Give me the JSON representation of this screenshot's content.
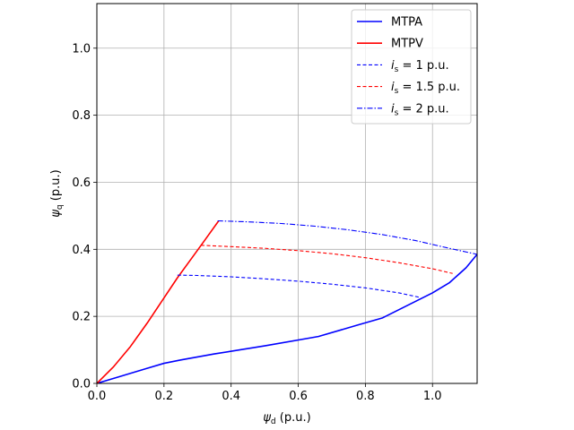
{
  "chart_data": {
    "type": "line",
    "xlabel": {
      "base": "ψ",
      "sub": "d",
      "unit": " (p.u.)"
    },
    "ylabel": {
      "base": "ψ",
      "sub": "q",
      "unit": " (p.u.)"
    },
    "xlim": [
      0,
      1.133
    ],
    "ylim": [
      0,
      1.133
    ],
    "xticks": [
      0.0,
      0.2,
      0.4,
      0.6,
      0.8,
      1.0
    ],
    "yticks": [
      0.0,
      0.2,
      0.4,
      0.6,
      0.8,
      1.0
    ],
    "xtick_labels": [
      "0.0",
      "0.2",
      "0.4",
      "0.6",
      "0.8",
      "1.0"
    ],
    "ytick_labels": [
      "0.0",
      "0.2",
      "0.4",
      "0.6",
      "0.8",
      "1.0"
    ],
    "grid": true,
    "legend_position": "top-right",
    "series": [
      {
        "name": "MTPA",
        "legend": {
          "text": "MTPA"
        },
        "color": "#0000ff",
        "style": "solid",
        "x": [
          0.0,
          0.05,
          0.1,
          0.15,
          0.2,
          0.25,
          0.35,
          0.5,
          0.66,
          0.78,
          0.85,
          0.9,
          0.96,
          1.0,
          1.05,
          1.1,
          1.133
        ],
        "y": [
          0.0,
          0.015,
          0.03,
          0.045,
          0.06,
          0.07,
          0.088,
          0.112,
          0.14,
          0.175,
          0.195,
          0.22,
          0.25,
          0.27,
          0.3,
          0.345,
          0.385
        ]
      },
      {
        "name": "MTPV",
        "legend": {
          "text": "MTPV"
        },
        "color": "#ff0000",
        "style": "solid",
        "x": [
          0.0,
          0.05,
          0.1,
          0.15,
          0.2,
          0.24,
          0.28,
          0.32,
          0.363
        ],
        "y": [
          0.0,
          0.05,
          0.11,
          0.18,
          0.255,
          0.315,
          0.37,
          0.425,
          0.485
        ]
      },
      {
        "name": "is = 1 p.u.",
        "legend": {
          "sym": "i",
          "sub": "s",
          "rest": " =  1 p.u."
        },
        "color": "#0000ff",
        "style": "dashed",
        "x": [
          0.24,
          0.3,
          0.4,
          0.5,
          0.6,
          0.7,
          0.8,
          0.9,
          0.96
        ],
        "y": [
          0.323,
          0.322,
          0.318,
          0.312,
          0.305,
          0.296,
          0.285,
          0.27,
          0.257
        ]
      },
      {
        "name": "is = 1.5 p.u.",
        "legend": {
          "sym": "i",
          "sub": "s",
          "rest": " =  1.5 p.u."
        },
        "color": "#ff0000",
        "style": "dashed",
        "x": [
          0.31,
          0.4,
          0.5,
          0.6,
          0.7,
          0.8,
          0.9,
          1.0,
          1.06
        ],
        "y": [
          0.412,
          0.408,
          0.403,
          0.396,
          0.387,
          0.375,
          0.36,
          0.342,
          0.328
        ]
      },
      {
        "name": "is = 2 p.u.",
        "legend": {
          "sym": "i",
          "sub": "s",
          "rest": " =  2 p.u."
        },
        "color": "#0000ff",
        "style": "dashdot",
        "x": [
          0.36,
          0.45,
          0.55,
          0.65,
          0.75,
          0.85,
          0.95,
          1.05,
          1.133
        ],
        "y": [
          0.485,
          0.482,
          0.477,
          0.469,
          0.458,
          0.444,
          0.426,
          0.403,
          0.385
        ]
      }
    ]
  }
}
